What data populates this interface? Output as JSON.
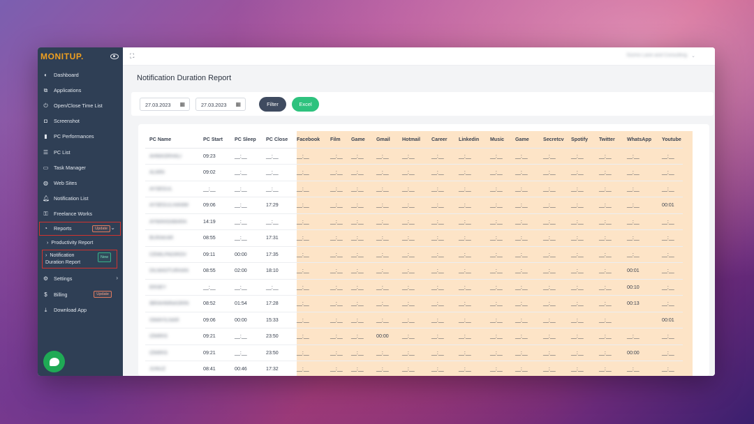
{
  "brand": {
    "name": "MONITUP",
    "dot": "."
  },
  "sidebar": {
    "items": [
      {
        "label": "Dashboard",
        "icon": "speedometer-icon"
      },
      {
        "label": "Applications",
        "icon": "windows-icon"
      },
      {
        "label": "Open/Close Time List",
        "icon": "power-icon"
      },
      {
        "label": "Screenshot",
        "icon": "camera-icon"
      },
      {
        "label": "PC Performances",
        "icon": "bar-chart-icon"
      },
      {
        "label": "PC List",
        "icon": "list-icon"
      },
      {
        "label": "Task Manager",
        "icon": "monitor-icon"
      },
      {
        "label": "Web Sites",
        "icon": "globe-icon"
      },
      {
        "label": "Notification List",
        "icon": "bell-icon"
      },
      {
        "label": "Freelance Works",
        "icon": "user-lock-icon"
      }
    ],
    "reports": {
      "label": "Reports",
      "badge": "Update"
    },
    "sub_items": {
      "productivity": "Productivity Report",
      "notification_line1": "Notification",
      "notification_line2": "Duration Report",
      "notification_badge": "New"
    },
    "settings": {
      "label": "Settings"
    },
    "billing": {
      "label": "Billing",
      "badge": "Update"
    },
    "download": {
      "label": "Download App"
    }
  },
  "topbar": {
    "company": "Gizmo Lane and Consulting"
  },
  "page": {
    "title": "Notification Duration Report"
  },
  "filters": {
    "date_from": "27.03.2023",
    "date_to": "27.03.2023",
    "filter_label": "Filter",
    "excel_label": "Excel"
  },
  "colors": {
    "sidebar": "#2f3f55",
    "brand": "#f0a020",
    "filter_button": "#3f4b60",
    "excel_button": "#2ec27e",
    "highlight_column_band": "#fde4c7",
    "annotation_red": "#d2332e"
  },
  "table": {
    "columns": [
      "PC Name",
      "PC Start",
      "PC Sleep",
      "PC Close",
      "Facebook",
      "Film",
      "Game",
      "Gmail",
      "Hotmail",
      "Career",
      "Linkedin",
      "Music",
      "Game",
      "Secretcv",
      "Spotify",
      "Twitter",
      "WhatsApp",
      "Youtube"
    ],
    "rows": [
      [
        "AHMASRHALI",
        "09:23",
        "__:__",
        "__:__",
        "__:__",
        "__:__",
        "__:__",
        "__:__",
        "__:__",
        "__:__",
        "__:__",
        "__:__",
        "__:__",
        "__:__",
        "__:__",
        "__:__",
        "__:__",
        "__:__"
      ],
      [
        "ALMIN",
        "09:02",
        "__:__",
        "__:__",
        "__:__",
        "__:__",
        "__:__",
        "__:__",
        "__:__",
        "__:__",
        "__:__",
        "__:__",
        "__:__",
        "__:__",
        "__:__",
        "__:__",
        "__:__",
        "__:__"
      ],
      [
        "AYSEGUL",
        "__:__",
        "__:__",
        "__:__",
        "__:__",
        "__:__",
        "__:__",
        "__:__",
        "__:__",
        "__:__",
        "__:__",
        "__:__",
        "__:__",
        "__:__",
        "__:__",
        "__:__",
        "__:__",
        "__:__"
      ],
      [
        "AYSEGULHANIM",
        "09:06",
        "__:__",
        "17:29",
        "__:__",
        "__:__",
        "__:__",
        "__:__",
        "__:__",
        "__:__",
        "__:__",
        "__:__",
        "__:__",
        "__:__",
        "__:__",
        "__:__",
        "__:__",
        "00:01"
      ],
      [
        "AYMANSABARA",
        "14:19",
        "__:__",
        "__:__",
        "__:__",
        "__:__",
        "__:__",
        "__:__",
        "__:__",
        "__:__",
        "__:__",
        "__:__",
        "__:__",
        "__:__",
        "__:__",
        "__:__",
        "__:__",
        "__:__"
      ],
      [
        "BURAKAR",
        "08:55",
        "__:__",
        "17:31",
        "__:__",
        "__:__",
        "__:__",
        "__:__",
        "__:__",
        "__:__",
        "__:__",
        "__:__",
        "__:__",
        "__:__",
        "__:__",
        "__:__",
        "__:__",
        "__:__"
      ],
      [
        "CEMILPADIROV",
        "09:11",
        "00:00",
        "17:35",
        "__:__",
        "__:__",
        "__:__",
        "__:__",
        "__:__",
        "__:__",
        "__:__",
        "__:__",
        "__:__",
        "__:__",
        "__:__",
        "__:__",
        "__:__",
        "__:__"
      ],
      [
        "DILMASTURHAN",
        "08:55",
        "02:00",
        "18:10",
        "__:__",
        "__:__",
        "__:__",
        "__:__",
        "__:__",
        "__:__",
        "__:__",
        "__:__",
        "__:__",
        "__:__",
        "__:__",
        "__:__",
        "00:01",
        "__:__"
      ],
      [
        "ERSEY",
        "__:__",
        "__:__",
        "__:__",
        "__:__",
        "__:__",
        "__:__",
        "__:__",
        "__:__",
        "__:__",
        "__:__",
        "__:__",
        "__:__",
        "__:__",
        "__:__",
        "__:__",
        "00:10",
        "__:__"
      ],
      [
        "IBRAHIMNASRIN",
        "08:52",
        "01:54",
        "17:28",
        "__:__",
        "__:__",
        "__:__",
        "__:__",
        "__:__",
        "__:__",
        "__:__",
        "__:__",
        "__:__",
        "__:__",
        "__:__",
        "__:__",
        "00:13",
        "__:__"
      ],
      [
        "ISMAYILNAR",
        "09:06",
        "00:00",
        "15:33",
        "__:__",
        "__:__",
        "__:__",
        "__:__",
        "__:__",
        "__:__",
        "__:__",
        "__:__",
        "__:__",
        "__:__",
        "__:__",
        "__:__",
        "",
        "00:01"
      ],
      [
        "IZMIRIS",
        "09:21",
        "__:__",
        "23:50",
        "__:__",
        "__:__",
        "__:__",
        "00:00",
        "__:__",
        "__:__",
        "__:__",
        "__:__",
        "__:__",
        "__:__",
        "__:__",
        "__:__",
        "__:__",
        "__:__"
      ],
      [
        "IZMIRIS",
        "09:21",
        "__:__",
        "23:50",
        "__:__",
        "__:__",
        "__:__",
        "__:__",
        "__:__",
        "__:__",
        "__:__",
        "__:__",
        "__:__",
        "__:__",
        "__:__",
        "__:__",
        "00:00",
        "__:__"
      ],
      [
        "JUNUZ",
        "08:41",
        "00:46",
        "17:32",
        "__:__",
        "__:__",
        "__:__",
        "__:__",
        "__:__",
        "__:__",
        "__:__",
        "__:__",
        "__:__",
        "__:__",
        "__:__",
        "__:__",
        "__:__",
        "__:__"
      ]
    ]
  }
}
